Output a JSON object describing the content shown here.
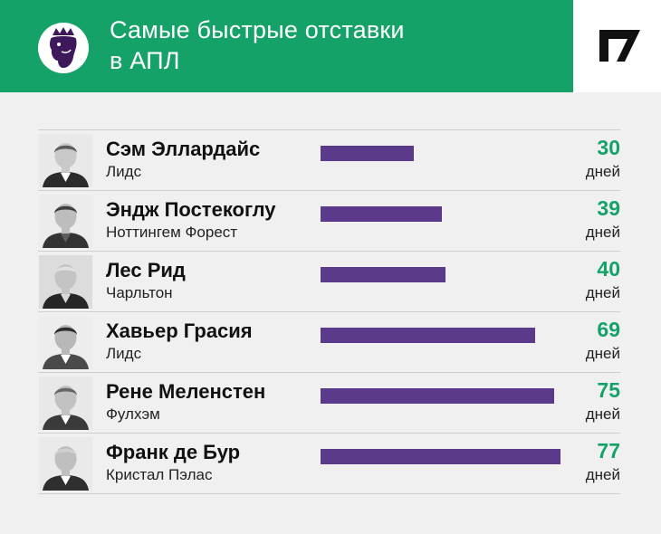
{
  "header": {
    "title_line1": "Самые быстрые отставки",
    "title_line2": "в АПЛ",
    "logo_icon": "premier-league-lion-icon",
    "brand_icon": "sports-ru-logo-icon",
    "background_color": "#15a269"
  },
  "chart_data": {
    "type": "bar",
    "orientation": "horizontal",
    "title": "Самые быстрые отставки в АПЛ",
    "categories": [
      "Сэм Эллардайс",
      "Эндж Постекоглу",
      "Лес Рид",
      "Хавьер Грасия",
      "Рене Меленстен",
      "Франк де Бур"
    ],
    "values": [
      30,
      39,
      40,
      69,
      75,
      77
    ],
    "xlim": [
      0,
      80
    ],
    "unit": "дней",
    "bar_color": "#5b3a8c",
    "value_color": "#15a269",
    "rows": [
      {
        "name": "Сэм Эллардайс",
        "club": "Лидс",
        "days": "30",
        "unit": "дней",
        "value": 30
      },
      {
        "name": "Эндж Постекоглу",
        "club": "Ноттингем Форест",
        "days": "39",
        "unit": "дней",
        "value": 39
      },
      {
        "name": "Лес Рид",
        "club": "Чарльтон",
        "days": "40",
        "unit": "дней",
        "value": 40
      },
      {
        "name": "Хавьер Грасия",
        "club": "Лидс",
        "days": "69",
        "unit": "дней",
        "value": 69
      },
      {
        "name": "Рене Меленстен",
        "club": "Фулхэм",
        "days": "75",
        "unit": "дней",
        "value": 75
      },
      {
        "name": "Франк де Бур",
        "club": "Кристал Пэлас",
        "days": "77",
        "unit": "дней",
        "value": 77
      }
    ]
  }
}
